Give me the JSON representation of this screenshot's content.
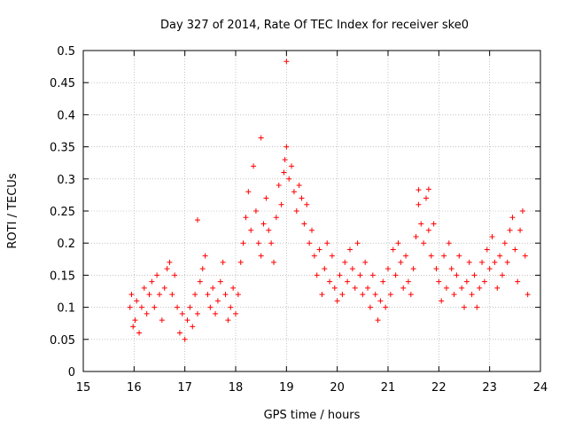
{
  "chart_data": {
    "type": "scatter",
    "title": "Day 327 of 2014, Rate Of TEC Index for receiver ske0",
    "xlabel": "GPS time / hours",
    "ylabel": "ROTI / TECUs",
    "xlim": [
      15,
      24
    ],
    "ylim": [
      0,
      0.5
    ],
    "x_ticks": [
      "15",
      "16",
      "17",
      "18",
      "19",
      "20",
      "21",
      "22",
      "23",
      "24"
    ],
    "y_ticks": [
      "0",
      "0.05",
      "0.1",
      "0.15",
      "0.2",
      "0.25",
      "0.3",
      "0.35",
      "0.4",
      "0.45",
      "0.5"
    ],
    "grid": true,
    "marker": "+",
    "color": "#ff0000",
    "series": [
      {
        "name": "ROTI",
        "x": [
          15.92,
          15.95,
          15.98,
          16.02,
          16.05,
          16.1,
          16.15,
          16.2,
          16.25,
          16.3,
          16.35,
          16.4,
          16.45,
          16.5,
          16.55,
          16.6,
          16.65,
          16.7,
          16.75,
          16.8,
          16.85,
          16.9,
          16.95,
          17.0,
          17.05,
          17.1,
          17.15,
          17.2,
          17.25,
          17.3,
          17.35,
          17.4,
          17.45,
          17.5,
          17.55,
          17.6,
          17.65,
          17.7,
          17.75,
          17.8,
          17.85,
          17.9,
          17.95,
          18.0,
          18.05,
          18.1,
          18.15,
          18.2,
          18.25,
          18.3,
          18.35,
          18.4,
          18.45,
          18.5,
          18.55,
          18.6,
          18.65,
          18.7,
          18.75,
          18.8,
          18.85,
          18.9,
          18.95,
          18.97,
          19.0,
          19.05,
          19.1,
          19.15,
          19.2,
          19.25,
          19.3,
          19.35,
          19.4,
          19.45,
          19.5,
          19.55,
          19.6,
          19.65,
          19.7,
          19.75,
          19.8,
          19.85,
          19.9,
          19.95,
          20.0,
          20.05,
          20.1,
          20.15,
          20.2,
          20.25,
          20.3,
          20.35,
          20.4,
          20.45,
          20.5,
          20.55,
          20.6,
          20.65,
          20.7,
          20.75,
          20.8,
          20.85,
          20.9,
          20.95,
          21.0,
          21.05,
          21.1,
          21.15,
          21.2,
          21.25,
          21.3,
          21.35,
          21.4,
          21.45,
          21.5,
          21.55,
          21.6,
          21.65,
          21.7,
          21.75,
          21.8,
          21.85,
          21.9,
          21.95,
          22.0,
          22.05,
          22.1,
          22.15,
          22.2,
          22.25,
          22.3,
          22.35,
          22.4,
          22.45,
          22.5,
          22.55,
          22.6,
          22.65,
          22.7,
          22.75,
          22.8,
          22.85,
          22.9,
          22.95,
          23.0,
          23.05,
          23.1,
          23.15,
          23.2,
          23.25,
          23.3,
          23.35,
          23.4,
          23.45,
          23.5,
          23.55,
          23.6,
          23.65,
          23.7,
          23.75,
          17.25,
          18.5,
          19.0,
          21.6,
          21.8
        ],
        "y": [
          0.1,
          0.12,
          0.07,
          0.08,
          0.11,
          0.06,
          0.1,
          0.13,
          0.09,
          0.12,
          0.14,
          0.1,
          0.15,
          0.12,
          0.08,
          0.13,
          0.16,
          0.17,
          0.12,
          0.15,
          0.1,
          0.06,
          0.09,
          0.05,
          0.08,
          0.1,
          0.07,
          0.12,
          0.09,
          0.14,
          0.16,
          0.18,
          0.12,
          0.1,
          0.13,
          0.09,
          0.11,
          0.14,
          0.17,
          0.12,
          0.08,
          0.1,
          0.13,
          0.09,
          0.12,
          0.17,
          0.2,
          0.24,
          0.28,
          0.22,
          0.32,
          0.25,
          0.2,
          0.18,
          0.23,
          0.27,
          0.22,
          0.2,
          0.17,
          0.24,
          0.29,
          0.26,
          0.31,
          0.33,
          0.35,
          0.3,
          0.32,
          0.28,
          0.25,
          0.29,
          0.27,
          0.23,
          0.26,
          0.2,
          0.22,
          0.18,
          0.15,
          0.19,
          0.12,
          0.16,
          0.2,
          0.14,
          0.18,
          0.13,
          0.11,
          0.15,
          0.12,
          0.17,
          0.14,
          0.19,
          0.16,
          0.13,
          0.2,
          0.15,
          0.12,
          0.17,
          0.13,
          0.1,
          0.15,
          0.12,
          0.08,
          0.11,
          0.14,
          0.1,
          0.16,
          0.12,
          0.19,
          0.15,
          0.2,
          0.17,
          0.13,
          0.18,
          0.14,
          0.12,
          0.16,
          0.21,
          0.26,
          0.23,
          0.2,
          0.27,
          0.22,
          0.18,
          0.23,
          0.16,
          0.14,
          0.11,
          0.18,
          0.13,
          0.2,
          0.16,
          0.12,
          0.15,
          0.18,
          0.13,
          0.1,
          0.14,
          0.17,
          0.12,
          0.15,
          0.1,
          0.13,
          0.17,
          0.14,
          0.19,
          0.16,
          0.21,
          0.17,
          0.13,
          0.18,
          0.15,
          0.2,
          0.17,
          0.22,
          0.24,
          0.19,
          0.14,
          0.22,
          0.25,
          0.18,
          0.12,
          0.236,
          0.364,
          0.483,
          0.283,
          0.284
        ]
      }
    ]
  }
}
